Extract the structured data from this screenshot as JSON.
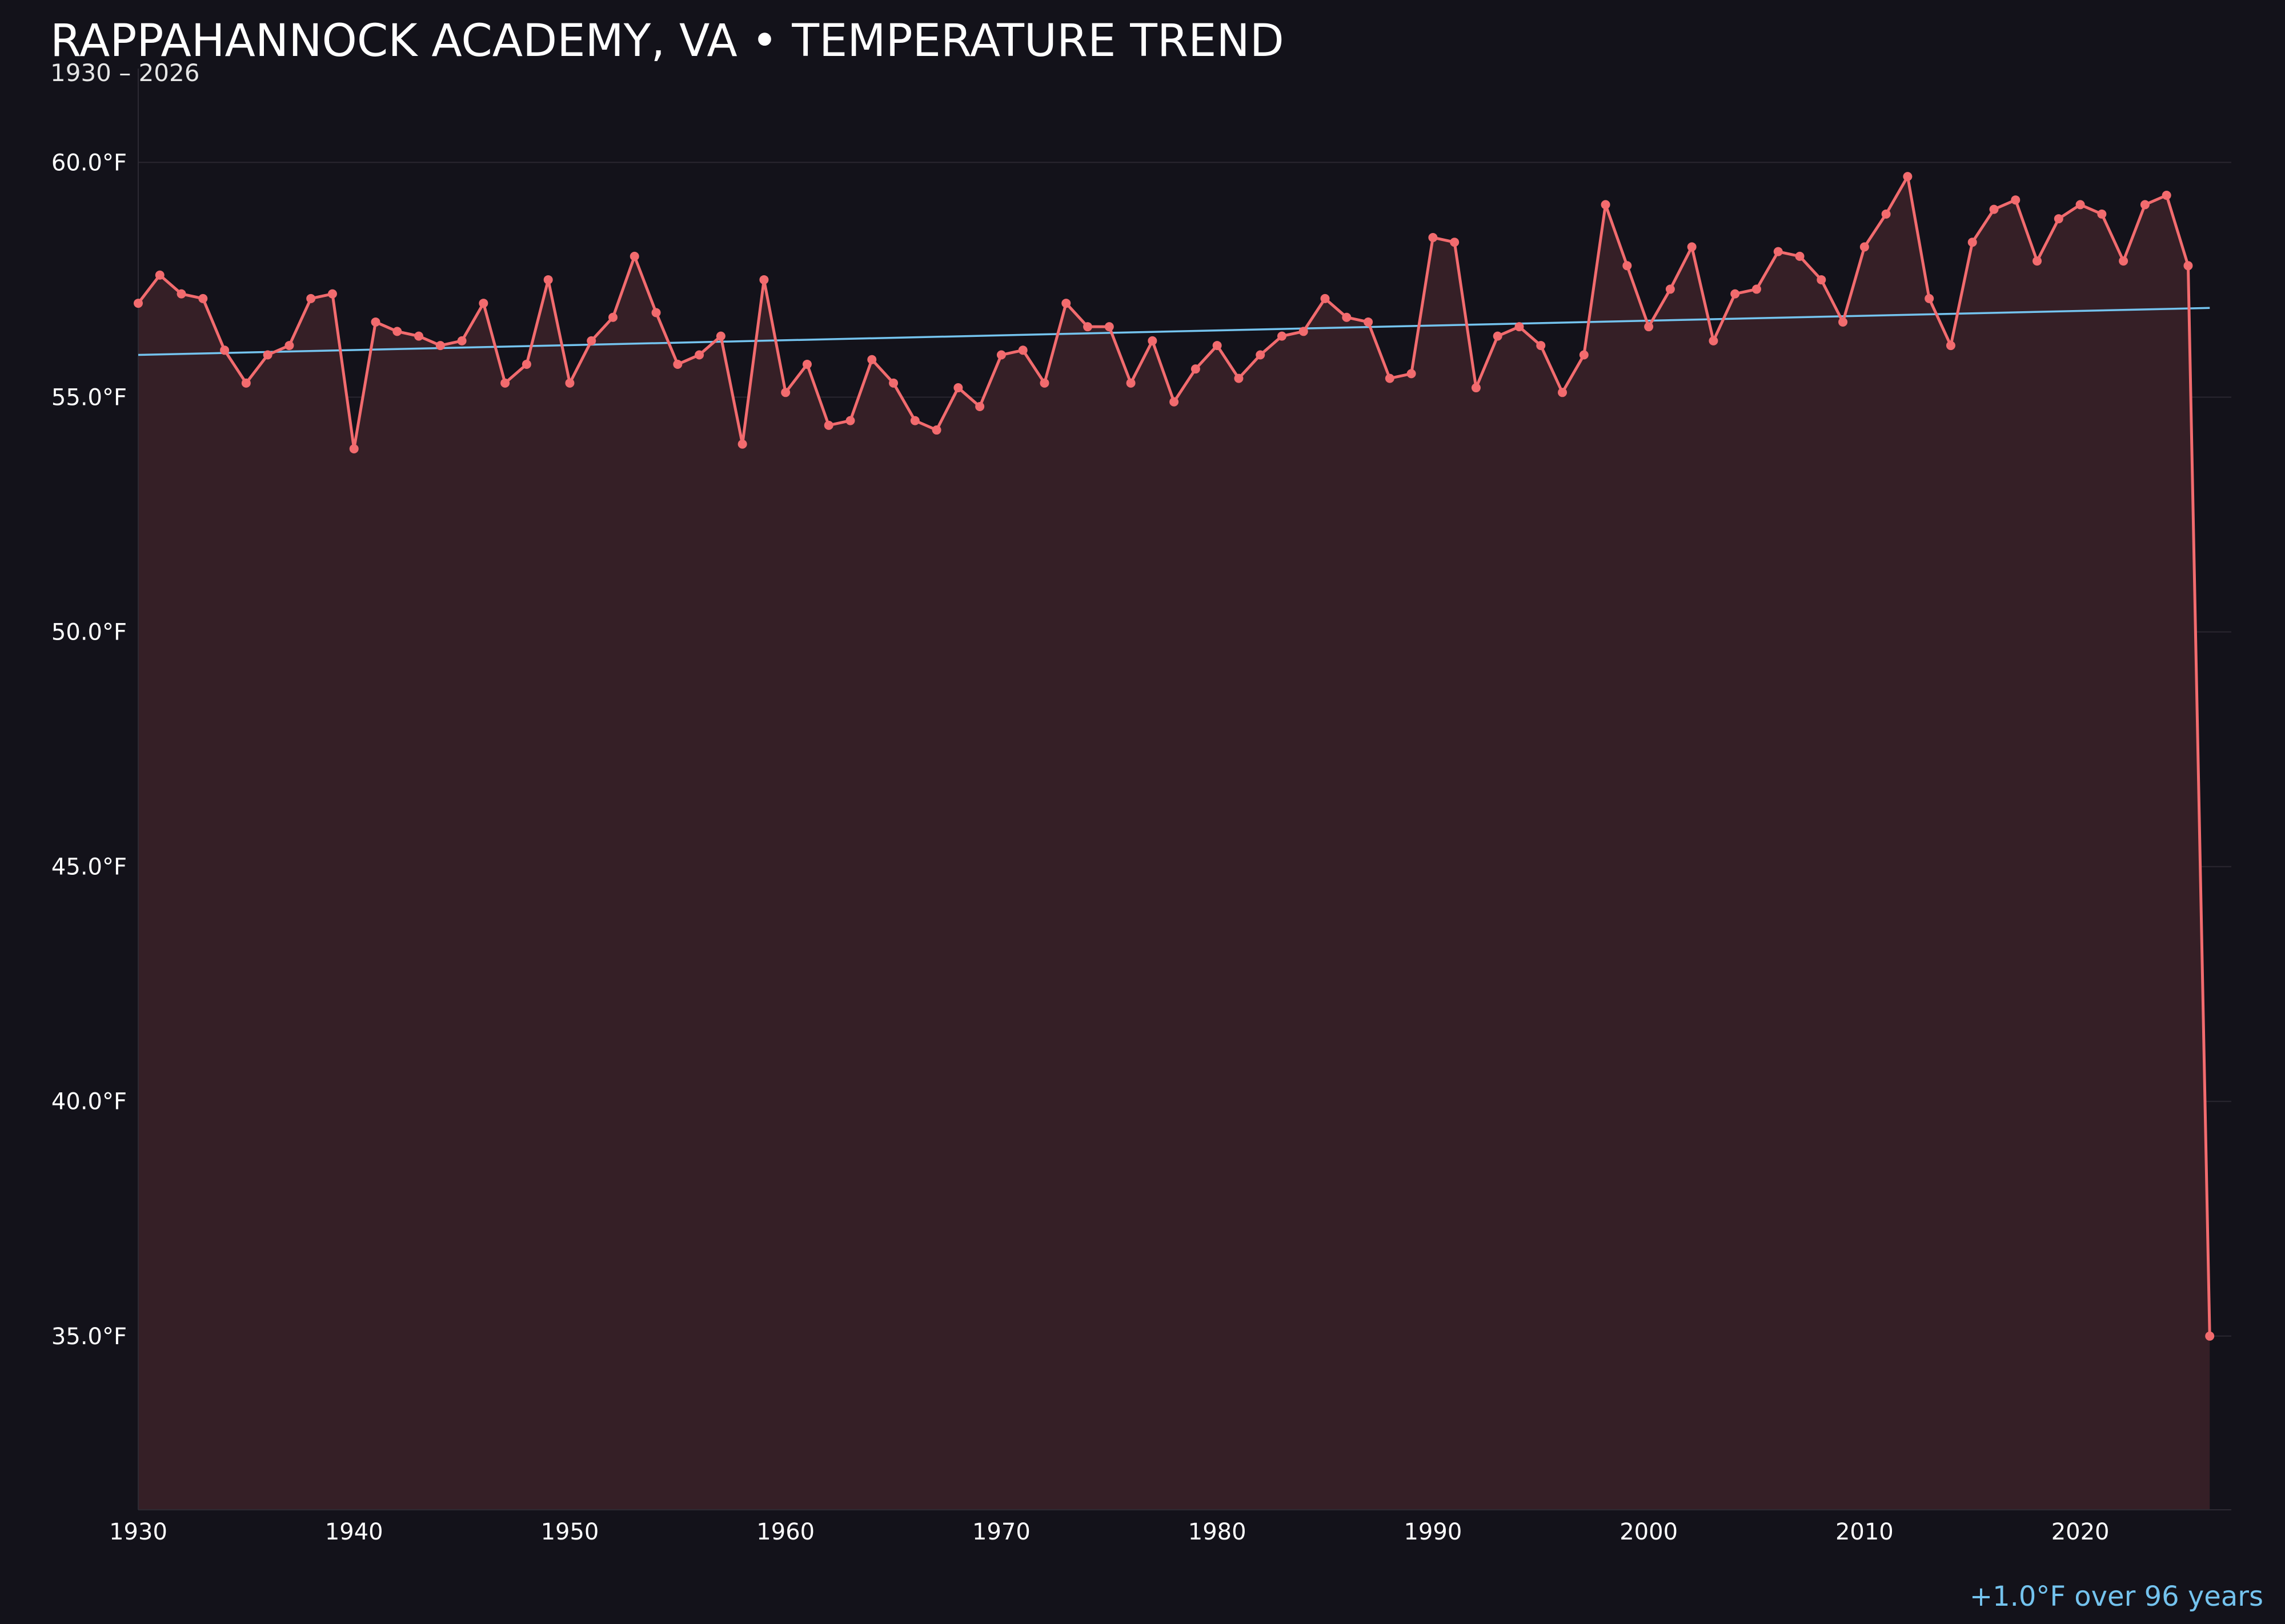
{
  "chart_data": {
    "type": "line",
    "title": "RAPPAHANNOCK ACADEMY, VA • TEMPERATURE TREND",
    "subtitle": "1930 – 2026",
    "xlabel": "",
    "ylabel": "",
    "xlim": [
      1930,
      2027
    ],
    "ylim": [
      31.3,
      62.0
    ],
    "x_ticks": [
      {
        "value": 1930,
        "label": "1930"
      },
      {
        "value": 1940,
        "label": "1940"
      },
      {
        "value": 1950,
        "label": "1950"
      },
      {
        "value": 1960,
        "label": "1960"
      },
      {
        "value": 1970,
        "label": "1970"
      },
      {
        "value": 1980,
        "label": "1980"
      },
      {
        "value": 1990,
        "label": "1990"
      },
      {
        "value": 2000,
        "label": "2000"
      },
      {
        "value": 2010,
        "label": "2010"
      },
      {
        "value": 2020,
        "label": "2020"
      }
    ],
    "y_ticks": [
      {
        "value": 35,
        "label": "35.0°F"
      },
      {
        "value": 40,
        "label": "40.0°F"
      },
      {
        "value": 45,
        "label": "45.0°F"
      },
      {
        "value": 50,
        "label": "50.0°F"
      },
      {
        "value": 55,
        "label": "55.0°F"
      },
      {
        "value": 60,
        "label": "60.0°F"
      }
    ],
    "grid": true,
    "series": [
      {
        "color": "#f26b6e",
        "fill_color": "#351f26",
        "points": [
          [
            1930,
            57.0
          ],
          [
            1931,
            57.6
          ],
          [
            1932,
            57.2
          ],
          [
            1933,
            57.1
          ],
          [
            1934,
            56.0
          ],
          [
            1935,
            55.3
          ],
          [
            1936,
            55.9
          ],
          [
            1937,
            56.1
          ],
          [
            1938,
            57.1
          ],
          [
            1939,
            57.2
          ],
          [
            1940,
            53.9
          ],
          [
            1941,
            56.6
          ],
          [
            1942,
            56.4
          ],
          [
            1943,
            56.3
          ],
          [
            1944,
            56.1
          ],
          [
            1945,
            56.2
          ],
          [
            1946,
            57.0
          ],
          [
            1947,
            55.3
          ],
          [
            1948,
            55.7
          ],
          [
            1949,
            57.5
          ],
          [
            1950,
            55.3
          ],
          [
            1951,
            56.2
          ],
          [
            1952,
            56.7
          ],
          [
            1953,
            58.0
          ],
          [
            1954,
            56.8
          ],
          [
            1955,
            55.7
          ],
          [
            1956,
            55.9
          ],
          [
            1957,
            56.3
          ],
          [
            1958,
            54.0
          ],
          [
            1959,
            57.5
          ],
          [
            1960,
            55.1
          ],
          [
            1961,
            55.7
          ],
          [
            1962,
            54.4
          ],
          [
            1963,
            54.5
          ],
          [
            1964,
            55.8
          ],
          [
            1965,
            55.3
          ],
          [
            1966,
            54.5
          ],
          [
            1967,
            54.3
          ],
          [
            1968,
            55.2
          ],
          [
            1969,
            54.8
          ],
          [
            1970,
            55.9
          ],
          [
            1971,
            56.0
          ],
          [
            1972,
            55.3
          ],
          [
            1973,
            57.0
          ],
          [
            1974,
            56.5
          ],
          [
            1975,
            56.5
          ],
          [
            1976,
            55.3
          ],
          [
            1977,
            56.2
          ],
          [
            1978,
            54.9
          ],
          [
            1979,
            55.6
          ],
          [
            1980,
            56.1
          ],
          [
            1981,
            55.4
          ],
          [
            1982,
            55.9
          ],
          [
            1983,
            56.3
          ],
          [
            1984,
            56.4
          ],
          [
            1985,
            57.1
          ],
          [
            1986,
            56.7
          ],
          [
            1987,
            56.6
          ],
          [
            1988,
            55.4
          ],
          [
            1989,
            55.5
          ],
          [
            1990,
            58.4
          ],
          [
            1991,
            58.3
          ],
          [
            1992,
            55.2
          ],
          [
            1993,
            56.3
          ],
          [
            1994,
            56.5
          ],
          [
            1995,
            56.1
          ],
          [
            1996,
            55.1
          ],
          [
            1997,
            55.9
          ],
          [
            1998,
            59.1
          ],
          [
            1999,
            57.8
          ],
          [
            2000,
            56.5
          ],
          [
            2001,
            57.3
          ],
          [
            2002,
            58.2
          ],
          [
            2003,
            56.2
          ],
          [
            2004,
            57.2
          ],
          [
            2005,
            57.3
          ],
          [
            2006,
            58.1
          ],
          [
            2007,
            58.0
          ],
          [
            2008,
            57.5
          ],
          [
            2009,
            56.6
          ],
          [
            2010,
            58.2
          ],
          [
            2011,
            58.9
          ],
          [
            2012,
            59.7
          ],
          [
            2013,
            57.1
          ],
          [
            2014,
            56.1
          ],
          [
            2015,
            58.3
          ],
          [
            2016,
            59.0
          ],
          [
            2017,
            59.2
          ],
          [
            2018,
            57.9
          ],
          [
            2019,
            58.8
          ],
          [
            2020,
            59.1
          ],
          [
            2021,
            58.9
          ],
          [
            2022,
            57.9
          ],
          [
            2023,
            59.1
          ],
          [
            2024,
            59.3
          ],
          [
            2025,
            57.8
          ],
          [
            2026,
            35.0
          ]
        ]
      },
      {
        "type": "trend",
        "color": "#74c3ee",
        "points": [
          [
            1930,
            55.9
          ],
          [
            2026,
            56.9
          ]
        ]
      }
    ],
    "annotation": "+1.0°F over 96 years",
    "annotation_color": "#74c3ee"
  }
}
